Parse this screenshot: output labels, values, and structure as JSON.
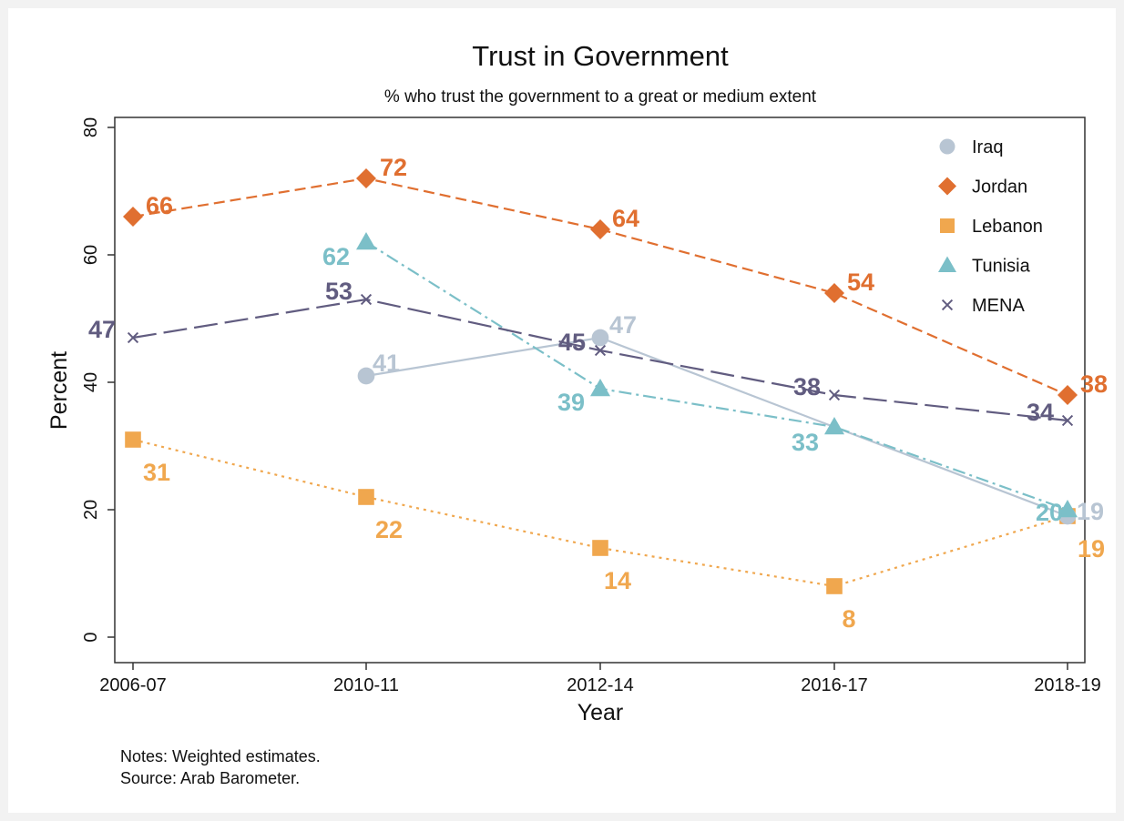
{
  "chart_data": {
    "type": "line",
    "title": "Trust in Government",
    "subtitle": "% who trust the government to a great or medium extent",
    "xlabel": "Year",
    "ylabel": "Percent",
    "categories": [
      "2006-07",
      "2010-11",
      "2012-14",
      "2016-17",
      "2018-19"
    ],
    "ylim": [
      0,
      80
    ],
    "yticks": [
      0,
      20,
      40,
      60,
      80
    ],
    "grid": false,
    "legend_position": "top-right",
    "series": [
      {
        "name": "Iraq",
        "color": "#b8c5d3",
        "marker": "circle",
        "dash": "solid",
        "values": [
          null,
          41,
          47,
          null,
          19
        ]
      },
      {
        "name": "Jordan",
        "color": "#e06f30",
        "marker": "diamond",
        "dash": "dash",
        "values": [
          66,
          72,
          64,
          54,
          38
        ]
      },
      {
        "name": "Lebanon",
        "color": "#f0a74e",
        "marker": "square",
        "dash": "dot",
        "values": [
          31,
          22,
          14,
          8,
          19
        ]
      },
      {
        "name": "Tunisia",
        "color": "#7bbfc8",
        "marker": "triangle",
        "dash": "dashdot",
        "values": [
          null,
          62,
          39,
          33,
          20
        ]
      },
      {
        "name": "MENA",
        "color": "#615c80",
        "marker": "x",
        "dash": "longdash",
        "values": [
          47,
          53,
          45,
          38,
          34
        ]
      }
    ],
    "notes": [
      "Notes: Weighted estimates.",
      "Source: Arab Barometer."
    ]
  }
}
